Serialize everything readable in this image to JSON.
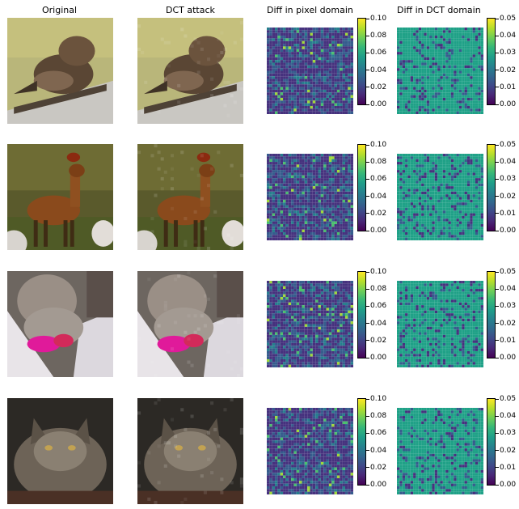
{
  "columns": [
    "Original",
    "DCT attack",
    "Diff in pixel domain",
    "Diff in DCT domain"
  ],
  "rows": [
    {
      "subject": "bird",
      "pixel_ticks": [
        "0.00",
        "0.02",
        "0.04",
        "0.06",
        "0.08",
        "0.10"
      ],
      "dct_ticks": [
        "0.00",
        "0.01",
        "0.02",
        "0.03",
        "0.04",
        "0.05"
      ]
    },
    {
      "subject": "deer",
      "pixel_ticks": [
        "0.00",
        "0.02",
        "0.04",
        "0.06",
        "0.08",
        "0.10"
      ],
      "dct_ticks": [
        "0.00",
        "0.01",
        "0.02",
        "0.03",
        "0.04",
        "0.05"
      ]
    },
    {
      "subject": "cat",
      "pixel_ticks": [
        "0.00",
        "0.02",
        "0.04",
        "0.06",
        "0.08",
        "0.10"
      ],
      "dct_ticks": [
        "0.00",
        "0.01",
        "0.02",
        "0.03",
        "0.04",
        "0.05"
      ]
    },
    {
      "subject": "cat",
      "pixel_ticks": [
        "0.00",
        "0.02",
        "0.04",
        "0.06",
        "0.08",
        "0.10"
      ],
      "dct_ticks": [
        "0.00",
        "0.01",
        "0.02",
        "0.03",
        "0.04",
        "0.05"
      ]
    }
  ],
  "colormap": "viridis"
}
